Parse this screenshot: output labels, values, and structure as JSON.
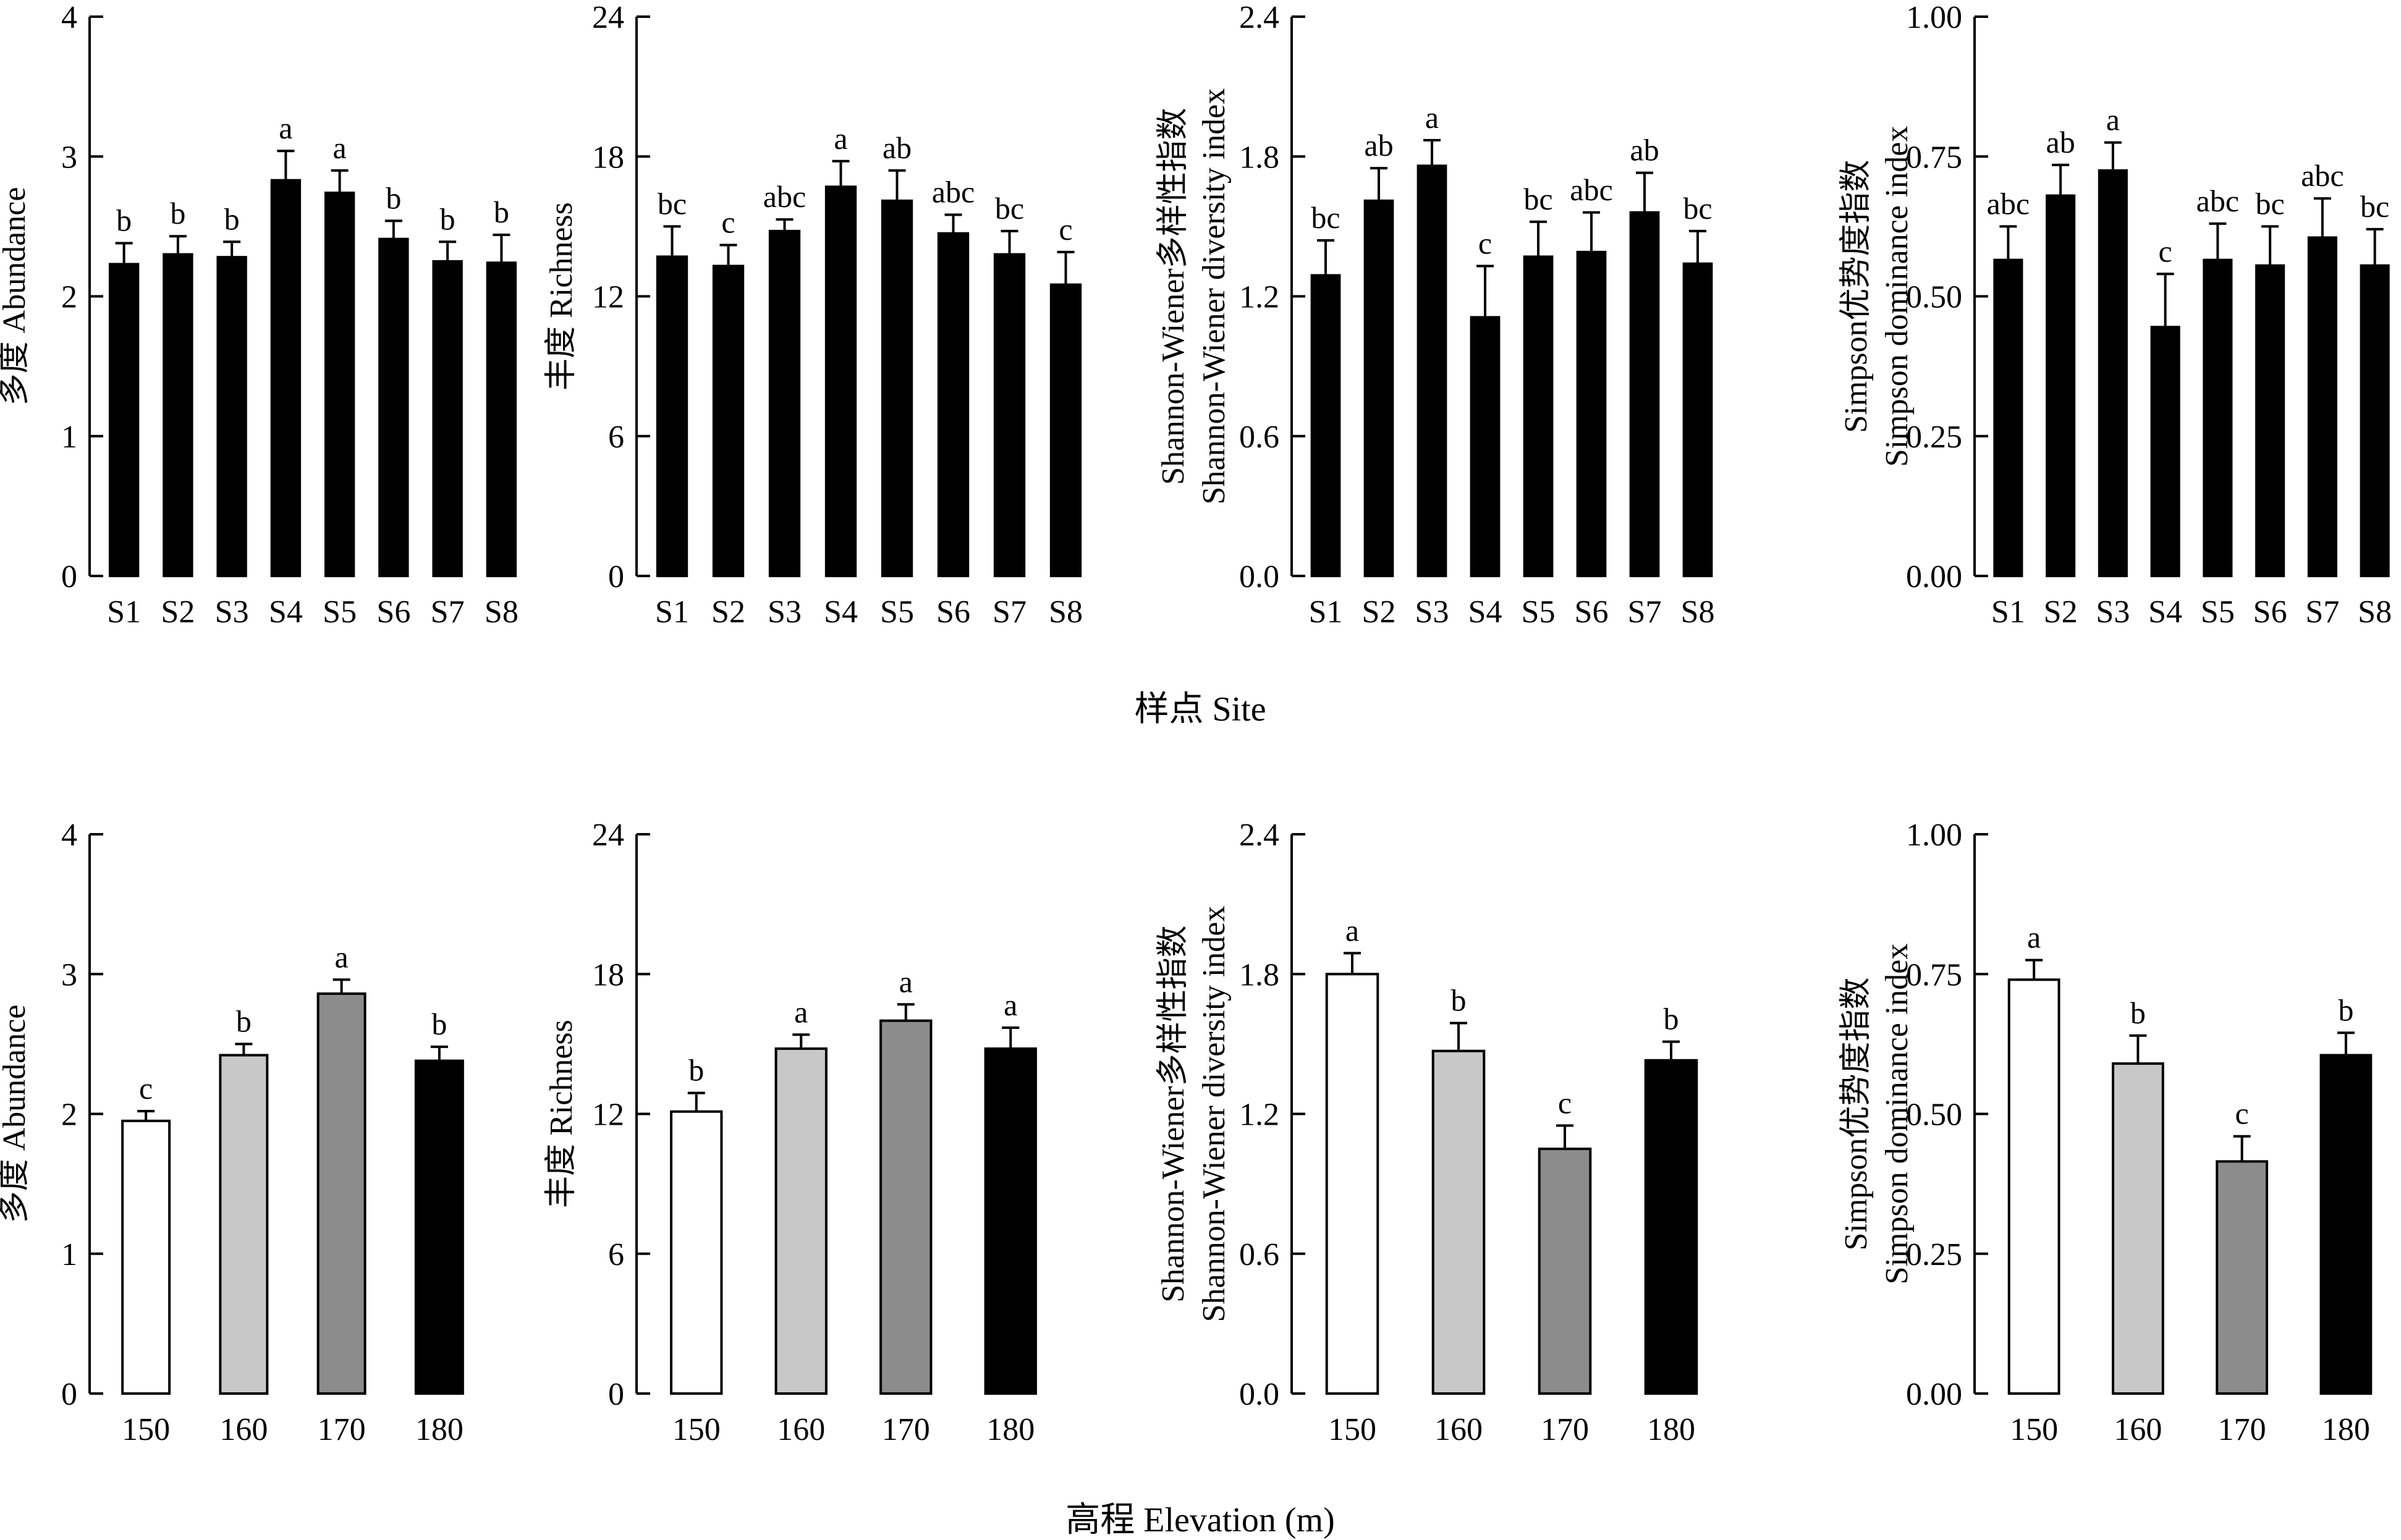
{
  "figure": {
    "top_xlabel": "样点 Site",
    "bottom_xlabel": "高程 Elevation (m)"
  },
  "chart_data": [
    {
      "type": "bar",
      "row": "top",
      "ylabel": [
        "多度 Abundance"
      ],
      "ylim": [
        0,
        4
      ],
      "yticks": [
        0,
        1,
        2,
        3,
        4
      ],
      "ytick_labels": [
        "0",
        "1",
        "2",
        "3",
        "4"
      ],
      "categories": [
        "S1",
        "S2",
        "S3",
        "S4",
        "S5",
        "S6",
        "S7",
        "S8"
      ],
      "values": [
        2.23,
        2.3,
        2.28,
        2.83,
        2.74,
        2.41,
        2.25,
        2.24
      ],
      "errors": [
        0.15,
        0.13,
        0.11,
        0.21,
        0.16,
        0.13,
        0.14,
        0.2
      ],
      "letters": [
        "b",
        "b",
        "b",
        "a",
        "a",
        "b",
        "b",
        "b"
      ],
      "fills": [
        "#000000",
        "#000000",
        "#000000",
        "#000000",
        "#000000",
        "#000000",
        "#000000",
        "#000000"
      ]
    },
    {
      "type": "bar",
      "row": "top",
      "ylabel": [
        "丰度 Richness"
      ],
      "ylim": [
        0,
        24
      ],
      "yticks": [
        0,
        6,
        12,
        18,
        24
      ],
      "ytick_labels": [
        "0",
        "6",
        "12",
        "18",
        "24"
      ],
      "categories": [
        "S1",
        "S2",
        "S3",
        "S4",
        "S5",
        "S6",
        "S7",
        "S8"
      ],
      "values": [
        13.7,
        13.3,
        14.8,
        16.7,
        16.1,
        14.7,
        13.8,
        12.5
      ],
      "errors": [
        1.3,
        0.9,
        0.5,
        1.1,
        1.3,
        0.8,
        1.0,
        1.4
      ],
      "letters": [
        "bc",
        "c",
        "abc",
        "a",
        "ab",
        "abc",
        "bc",
        "c"
      ],
      "fills": [
        "#000000",
        "#000000",
        "#000000",
        "#000000",
        "#000000",
        "#000000",
        "#000000",
        "#000000"
      ]
    },
    {
      "type": "bar",
      "row": "top",
      "ylabel": [
        "Shannon-Wiener多样性指数",
        "Shannon-Wiener diversity index"
      ],
      "ylim": [
        0,
        2.4
      ],
      "yticks": [
        0,
        0.6,
        1.2,
        1.8,
        2.4
      ],
      "ytick_labels": [
        "0.0",
        "0.6",
        "1.2",
        "1.8",
        "2.4"
      ],
      "categories": [
        "S1",
        "S2",
        "S3",
        "S4",
        "S5",
        "S6",
        "S7",
        "S8"
      ],
      "values": [
        1.29,
        1.61,
        1.76,
        1.11,
        1.37,
        1.39,
        1.56,
        1.34
      ],
      "errors": [
        0.15,
        0.14,
        0.11,
        0.22,
        0.15,
        0.17,
        0.17,
        0.14
      ],
      "letters": [
        "bc",
        "ab",
        "a",
        "c",
        "bc",
        "abc",
        "ab",
        "bc"
      ],
      "fills": [
        "#000000",
        "#000000",
        "#000000",
        "#000000",
        "#000000",
        "#000000",
        "#000000",
        "#000000"
      ]
    },
    {
      "type": "bar",
      "row": "top",
      "ylabel": [
        "Simpson优势度指数",
        "Simpson dominance index"
      ],
      "ylim": [
        0,
        1
      ],
      "yticks": [
        0,
        0.25,
        0.5,
        0.75,
        1
      ],
      "ytick_labels": [
        "0.00",
        "0.25",
        "0.50",
        "0.75",
        "1.00"
      ],
      "categories": [
        "S1",
        "S2",
        "S3",
        "S4",
        "S5",
        "S6",
        "S7",
        "S8"
      ],
      "values": [
        0.565,
        0.68,
        0.725,
        0.445,
        0.565,
        0.555,
        0.605,
        0.555
      ],
      "errors": [
        0.06,
        0.055,
        0.05,
        0.095,
        0.065,
        0.07,
        0.07,
        0.065
      ],
      "letters": [
        "abc",
        "ab",
        "a",
        "c",
        "abc",
        "bc",
        "abc",
        "bc"
      ],
      "fills": [
        "#000000",
        "#000000",
        "#000000",
        "#000000",
        "#000000",
        "#000000",
        "#000000",
        "#000000"
      ]
    },
    {
      "type": "bar",
      "row": "bottom",
      "ylabel": [
        "多度 Abundance"
      ],
      "ylim": [
        0,
        4
      ],
      "yticks": [
        0,
        1,
        2,
        3,
        4
      ],
      "ytick_labels": [
        "0",
        "1",
        "2",
        "3",
        "4"
      ],
      "categories": [
        "150",
        "160",
        "170",
        "180"
      ],
      "values": [
        1.95,
        2.42,
        2.86,
        2.38
      ],
      "errors": [
        0.07,
        0.08,
        0.1,
        0.1
      ],
      "letters": [
        "c",
        "b",
        "a",
        "b"
      ],
      "fills": [
        "#ffffff",
        "#c8c8c8",
        "#8c8c8c",
        "#000000"
      ]
    },
    {
      "type": "bar",
      "row": "bottom",
      "ylabel": [
        "丰度 Richness"
      ],
      "ylim": [
        0,
        24
      ],
      "yticks": [
        0,
        6,
        12,
        18,
        24
      ],
      "ytick_labels": [
        "0",
        "6",
        "12",
        "18",
        "24"
      ],
      "categories": [
        "150",
        "160",
        "170",
        "180"
      ],
      "values": [
        12.1,
        14.8,
        16.0,
        14.8
      ],
      "errors": [
        0.8,
        0.6,
        0.7,
        0.9
      ],
      "letters": [
        "b",
        "a",
        "a",
        "a"
      ],
      "fills": [
        "#ffffff",
        "#c8c8c8",
        "#8c8c8c",
        "#000000"
      ]
    },
    {
      "type": "bar",
      "row": "bottom",
      "ylabel": [
        "Shannon-Wiener多样性指数",
        "Shannon-Wiener diversity index"
      ],
      "ylim": [
        0,
        2.4
      ],
      "yticks": [
        0,
        0.6,
        1.2,
        1.8,
        2.4
      ],
      "ytick_labels": [
        "0.0",
        "0.6",
        "1.2",
        "1.8",
        "2.4"
      ],
      "categories": [
        "150",
        "160",
        "170",
        "180"
      ],
      "values": [
        1.8,
        1.47,
        1.05,
        1.43
      ],
      "errors": [
        0.09,
        0.12,
        0.1,
        0.08
      ],
      "letters": [
        "a",
        "b",
        "c",
        "b"
      ],
      "fills": [
        "#ffffff",
        "#c8c8c8",
        "#8c8c8c",
        "#000000"
      ]
    },
    {
      "type": "bar",
      "row": "bottom",
      "ylabel": [
        "Simpson优势度指数",
        "Simpson dominance index"
      ],
      "ylim": [
        0,
        1
      ],
      "yticks": [
        0,
        0.25,
        0.5,
        0.75,
        1
      ],
      "ytick_labels": [
        "0.00",
        "0.25",
        "0.50",
        "0.75",
        "1.00"
      ],
      "categories": [
        "150",
        "160",
        "170",
        "180"
      ],
      "values": [
        0.74,
        0.59,
        0.415,
        0.605
      ],
      "errors": [
        0.035,
        0.05,
        0.045,
        0.04
      ],
      "letters": [
        "a",
        "b",
        "c",
        "b"
      ],
      "fills": [
        "#ffffff",
        "#c8c8c8",
        "#8c8c8c",
        "#000000"
      ]
    }
  ]
}
